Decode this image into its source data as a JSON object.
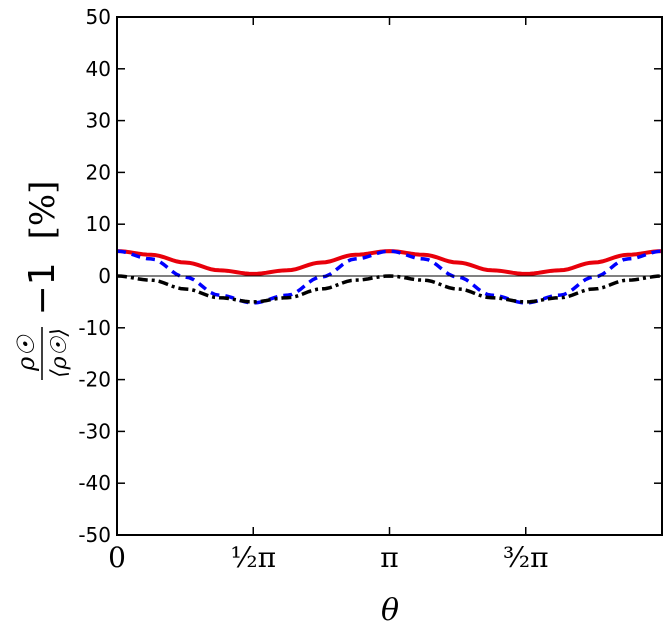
{
  "chart_data": {
    "type": "line",
    "xlabel": "θ",
    "ylabel": {
      "numerator": "ρ☉",
      "denominator": "⟨ρ☉⟩",
      "suffix": "−1",
      "unit": "[%]"
    },
    "xlim": [
      0,
      6.2832
    ],
    "ylim": [
      -50,
      50
    ],
    "x_ticks": [
      {
        "value": 0,
        "label": "0"
      },
      {
        "value": 1.5708,
        "label": "½π"
      },
      {
        "value": 3.1416,
        "label": "π"
      },
      {
        "value": 4.7124,
        "label": "³⁄₂π"
      }
    ],
    "y_ticks": [
      {
        "value": 50,
        "label": "50"
      },
      {
        "value": 40,
        "label": "40"
      },
      {
        "value": 30,
        "label": "30"
      },
      {
        "value": 20,
        "label": "20"
      },
      {
        "value": 10,
        "label": "10"
      },
      {
        "value": 0,
        "label": "0"
      },
      {
        "value": -10,
        "label": "-10"
      },
      {
        "value": -20,
        "label": "-20"
      },
      {
        "value": -30,
        "label": "-30"
      },
      {
        "value": -40,
        "label": "-40"
      },
      {
        "value": -50,
        "label": "-50"
      }
    ],
    "zero_line": true,
    "grid": false,
    "series": [
      {
        "style": "solid",
        "color": "#e8000b",
        "x": [
          0,
          0.3927,
          0.7854,
          1.1781,
          1.5708,
          1.9635,
          2.3562,
          2.7489,
          3.1416,
          3.5343,
          3.927,
          4.3197,
          4.7124,
          5.1051,
          5.4978,
          5.8905,
          6.2832
        ],
        "y": [
          4.8,
          4.1,
          2.6,
          1.1,
          0.4,
          1.1,
          2.6,
          4.1,
          4.8,
          4.1,
          2.6,
          1.1,
          0.4,
          1.1,
          2.6,
          4.1,
          4.8
        ]
      },
      {
        "style": "dashed",
        "color": "#0000ff",
        "x": [
          0,
          0.3927,
          0.7854,
          1.1781,
          1.5708,
          1.9635,
          2.3562,
          2.7489,
          3.1416,
          3.5343,
          3.927,
          4.3197,
          4.7124,
          5.1051,
          5.4978,
          5.8905,
          6.2832
        ],
        "y": [
          4.8,
          3.3,
          -0.2,
          -3.7,
          -5.2,
          -3.7,
          -0.2,
          3.3,
          4.8,
          3.3,
          -0.2,
          -3.7,
          -5.2,
          -3.7,
          -0.2,
          3.3,
          4.8
        ]
      },
      {
        "style": "dashdot",
        "color": "#000000",
        "x": [
          0,
          0.3927,
          0.7854,
          1.1781,
          1.5708,
          1.9635,
          2.3562,
          2.7489,
          3.1416,
          3.5343,
          3.927,
          4.3197,
          4.7124,
          5.1051,
          5.4978,
          5.8905,
          6.2832
        ],
        "y": [
          0.0,
          -0.8,
          -2.5,
          -4.2,
          -5.0,
          -4.2,
          -2.5,
          -0.8,
          0.0,
          -0.8,
          -2.5,
          -4.2,
          -5.0,
          -4.2,
          -2.5,
          -0.8,
          0.0
        ]
      }
    ]
  }
}
